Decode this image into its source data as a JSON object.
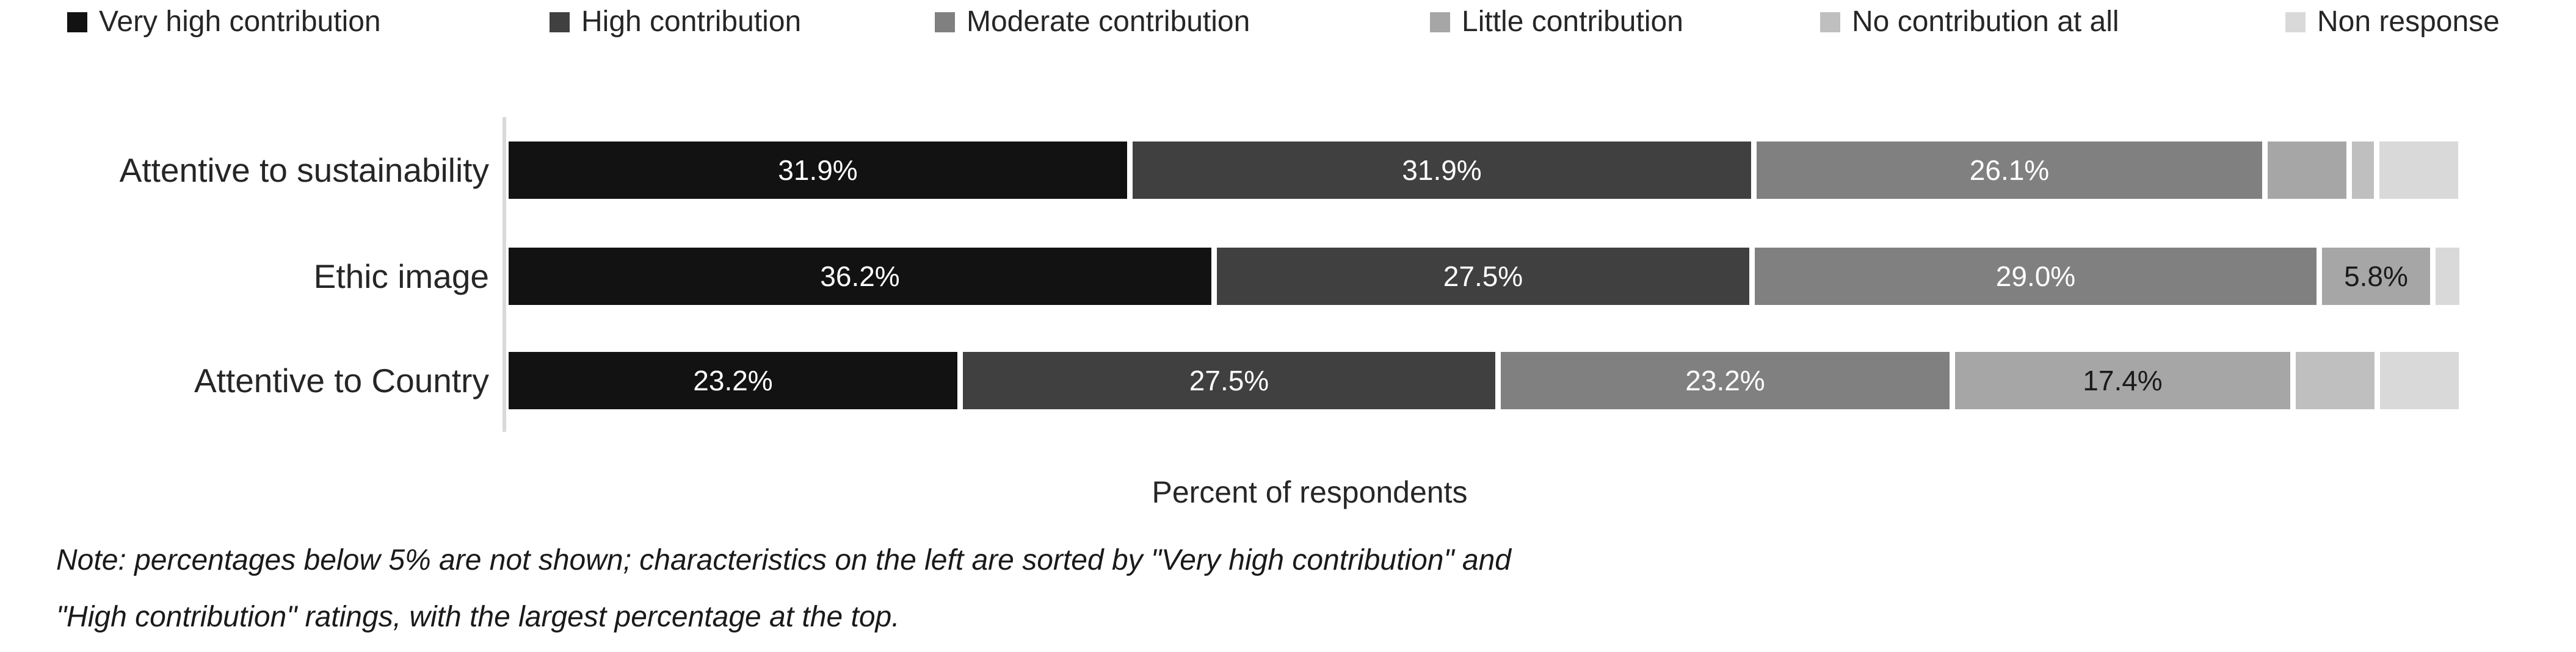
{
  "chart_data": {
    "type": "bar",
    "orientation": "horizontal-stacked",
    "categories": [
      "Attentive to sustainability",
      "Ethic image",
      "Attentive to Country"
    ],
    "series": [
      {
        "name": "Very high contribution",
        "color": "#121212",
        "label_color": "#ffffff",
        "values": [
          31.9,
          36.2,
          23.2
        ]
      },
      {
        "name": "High contribution",
        "color": "#404040",
        "label_color": "#ffffff",
        "values": [
          31.9,
          27.5,
          27.5
        ]
      },
      {
        "name": "Moderate contribution",
        "color": "#808080",
        "label_color": "#ffffff",
        "values": [
          26.1,
          29.0,
          23.2
        ]
      },
      {
        "name": "Little contribution",
        "color": "#a6a6a6",
        "label_color": "#1a1a1a",
        "values": [
          4.3,
          5.8,
          17.4
        ]
      },
      {
        "name": "No contribution at all",
        "color": "#bfbfbf",
        "label_color": "#1a1a1a",
        "values": [
          1.4,
          0,
          4.3
        ]
      },
      {
        "name": "Non response",
        "color": "#d9d9d9",
        "label_color": "#1a1a1a",
        "values": [
          4.3,
          1.5,
          4.3
        ]
      }
    ],
    "xlabel": "Percent of respondents",
    "xlim": [
      0,
      100
    ],
    "value_suffix": "%",
    "label_threshold": 5,
    "legend_position": "top",
    "grid": false,
    "axis_line_color": "#d9d9d9"
  },
  "note": {
    "line1": "Note: percentages below 5% are not shown; characteristics on the left are sorted by \"Very high contribution\" and",
    "line2": "\"High contribution\" ratings, with the largest percentage at the top."
  }
}
